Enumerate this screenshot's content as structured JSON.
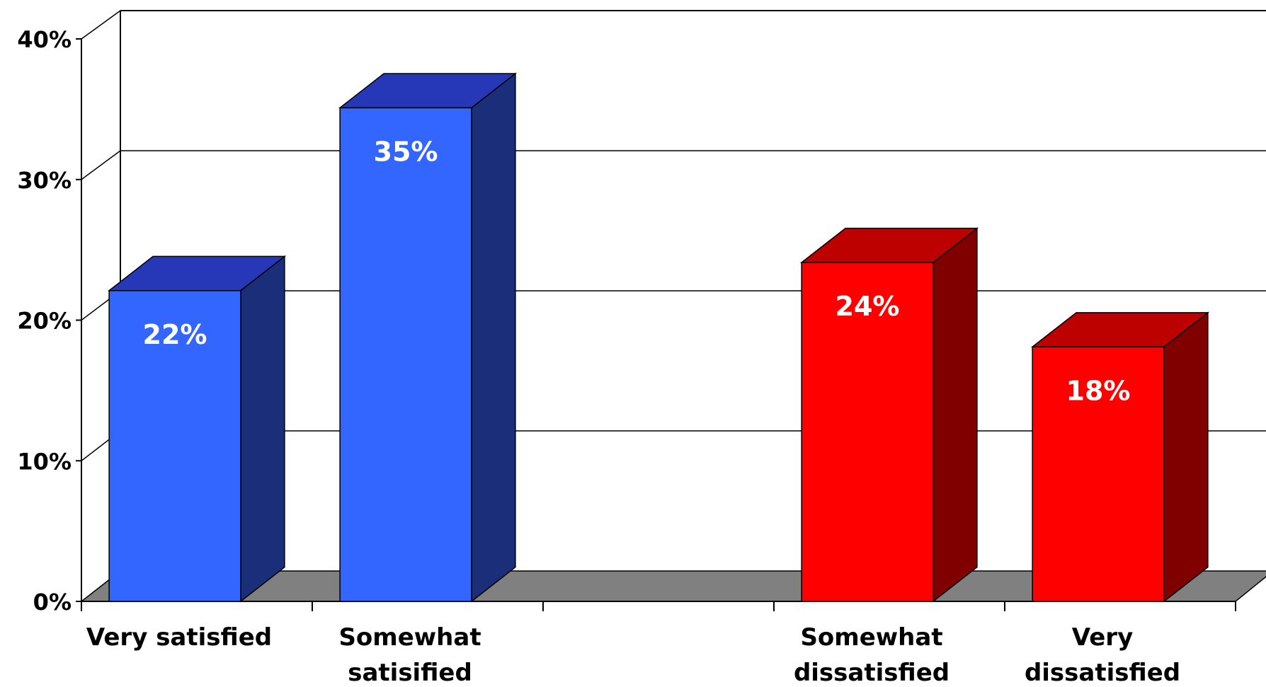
{
  "chart_data": {
    "type": "bar",
    "style": "3d-column",
    "categories": [
      "Very satisfied",
      "Somewhat satisified",
      "",
      "Somewhat dissatisfied",
      "Very dissatisfied"
    ],
    "category_lines": [
      [
        "Very satisfied"
      ],
      [
        "Somewhat",
        "satisified"
      ],
      [],
      [
        "Somewhat",
        "dissatisfied"
      ],
      [
        "Very",
        "dissatisfied"
      ]
    ],
    "values": [
      22,
      35,
      null,
      24,
      18
    ],
    "data_labels": [
      "22%",
      "35%",
      "",
      "24%",
      "18%"
    ],
    "colors": [
      "#3366FF",
      "#3366FF",
      null,
      "#FF0000",
      "#FF0000"
    ],
    "ylim": [
      0,
      40
    ],
    "yticks": [
      0,
      10,
      20,
      30,
      40
    ],
    "ytick_labels": [
      "0%",
      "10%",
      "20%",
      "30%",
      "40%"
    ],
    "grid": true,
    "legend": "none",
    "floor_color": "#808080"
  }
}
